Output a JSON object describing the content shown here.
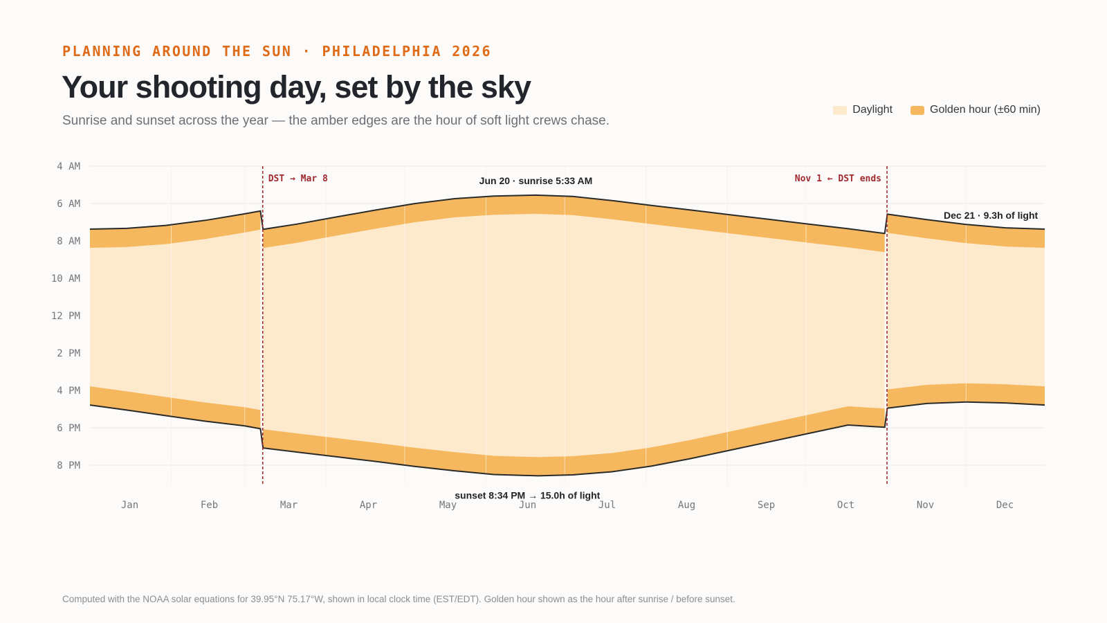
{
  "header": {
    "eyebrow": "PLANNING AROUND THE SUN · PHILADELPHIA 2026",
    "title": "Your shooting day, set by the sky",
    "subtitle": "Sunrise and sunset across the year — the amber edges are the hour of soft light crews chase."
  },
  "legend": {
    "items": [
      {
        "label": "Daylight",
        "color": "#fde9cc"
      },
      {
        "label": "Golden hour (±60 min)",
        "color": "#f5b85f"
      }
    ]
  },
  "footnote": "Computed with the NOAA solar equations for 39.95°N 75.17°W, shown in local clock time (EST/EDT). Golden hour shown as the hour after sunrise / before sunset.",
  "chart_data": {
    "type": "area",
    "x_unit": "day of year 2026",
    "y_unit": "local clock hour",
    "ylim": [
      4,
      21
    ],
    "y_ticks": [
      {
        "value": 4,
        "label": "4 AM"
      },
      {
        "value": 6,
        "label": "6 AM"
      },
      {
        "value": 8,
        "label": "8 AM"
      },
      {
        "value": 10,
        "label": "10 AM"
      },
      {
        "value": 12,
        "label": "12 PM"
      },
      {
        "value": 14,
        "label": "2 PM"
      },
      {
        "value": 16,
        "label": "4 PM"
      },
      {
        "value": 18,
        "label": "6 PM"
      },
      {
        "value": 20,
        "label": "8 PM"
      }
    ],
    "months": [
      "Jan",
      "Feb",
      "Mar",
      "Apr",
      "May",
      "Jun",
      "Jul",
      "Aug",
      "Sep",
      "Oct",
      "Nov",
      "Dec"
    ],
    "grid": true,
    "golden_hour_minutes": 60,
    "sunrise": [
      [
        1,
        7.37
      ],
      [
        15,
        7.33
      ],
      [
        30,
        7.17
      ],
      [
        45,
        6.9
      ],
      [
        60,
        6.55
      ],
      [
        66,
        6.4
      ],
      [
        67,
        7.38
      ],
      [
        80,
        7.1
      ],
      [
        95,
        6.72
      ],
      [
        110,
        6.35
      ],
      [
        125,
        6.0
      ],
      [
        140,
        5.74
      ],
      [
        155,
        5.6
      ],
      [
        171,
        5.55
      ],
      [
        185,
        5.62
      ],
      [
        200,
        5.84
      ],
      [
        215,
        6.1
      ],
      [
        230,
        6.35
      ],
      [
        245,
        6.6
      ],
      [
        260,
        6.85
      ],
      [
        275,
        7.1
      ],
      [
        290,
        7.35
      ],
      [
        304,
        7.6
      ],
      [
        305,
        6.57
      ],
      [
        320,
        6.86
      ],
      [
        335,
        7.12
      ],
      [
        350,
        7.3
      ],
      [
        365,
        7.37
      ]
    ],
    "sunset": [
      [
        1,
        16.78
      ],
      [
        15,
        17.05
      ],
      [
        30,
        17.35
      ],
      [
        45,
        17.65
      ],
      [
        60,
        17.9
      ],
      [
        66,
        18.05
      ],
      [
        67,
        19.08
      ],
      [
        80,
        19.3
      ],
      [
        95,
        19.55
      ],
      [
        110,
        19.8
      ],
      [
        125,
        20.07
      ],
      [
        140,
        20.3
      ],
      [
        155,
        20.5
      ],
      [
        172,
        20.57
      ],
      [
        185,
        20.52
      ],
      [
        200,
        20.35
      ],
      [
        215,
        20.05
      ],
      [
        230,
        19.65
      ],
      [
        245,
        19.2
      ],
      [
        260,
        18.75
      ],
      [
        275,
        18.3
      ],
      [
        290,
        17.85
      ],
      [
        304,
        17.97
      ],
      [
        305,
        16.95
      ],
      [
        320,
        16.7
      ],
      [
        335,
        16.62
      ],
      [
        350,
        16.67
      ],
      [
        365,
        16.78
      ]
    ],
    "dst_markers": [
      {
        "day": 67,
        "label": "DST → Mar 8"
      },
      {
        "day": 305,
        "label": "Nov 1 ← DST ends"
      }
    ],
    "annotations": [
      {
        "text": "Jun 20 · sunrise 5:33 AM",
        "day": 171,
        "value": 5.55
      },
      {
        "text": "sunset 8:34 PM → 15.0h of light",
        "day": 172,
        "value": 20.57
      },
      {
        "text": "Dec 21 · 9.3h of light",
        "day": 355,
        "value": 6.6
      }
    ],
    "colors": {
      "daylight": "#fde9cc",
      "golden": "#f5b85f",
      "line": "#2a2a2a",
      "dst": "#a12a2f",
      "grid": "#ebe8e3"
    }
  }
}
